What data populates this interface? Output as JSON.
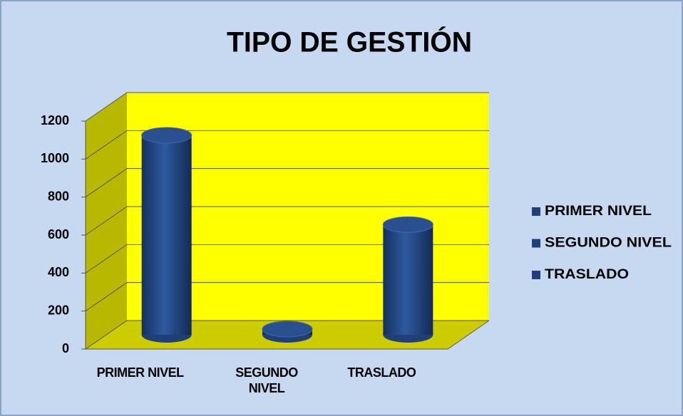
{
  "chart_data": {
    "type": "bar3d",
    "title": "TIPO DE GESTIÓN",
    "categories": [
      "PRIMER NIVEL",
      "SEGUNDO NIVEL",
      "TRASLADO"
    ],
    "series": [
      {
        "name": "PRIMER NIVEL",
        "color": "#1F3F7A"
      },
      {
        "name": "SEGUNDO NIVEL",
        "color": "#1F3F7A"
      },
      {
        "name": "TRASLADO",
        "color": "#1F3F7A"
      }
    ],
    "values": [
      1050,
      30,
      580
    ],
    "ylim": [
      0,
      1200
    ],
    "yticks": [
      0,
      200,
      400,
      600,
      800,
      1000,
      1200
    ],
    "grid": true,
    "legend": "right"
  }
}
